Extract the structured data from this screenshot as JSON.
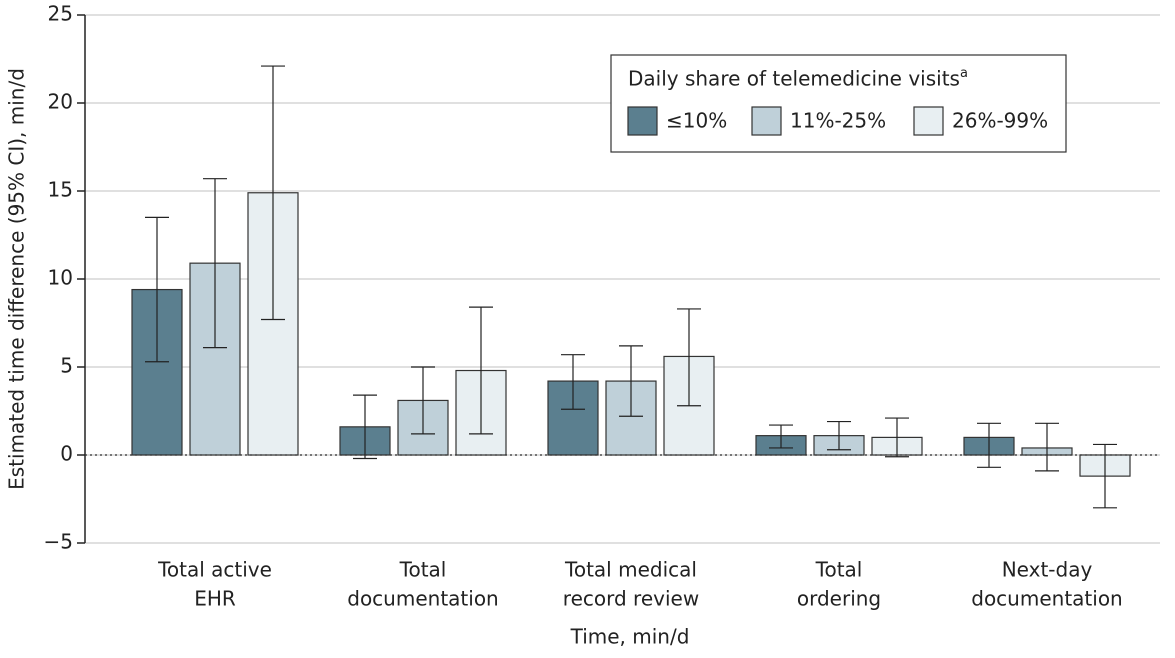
{
  "chart_data": {
    "type": "bar",
    "x_label": "Time, min/d",
    "y_label": "Estimated time difference (95% CI), min/d",
    "categories": [
      [
        "Total active",
        "EHR"
      ],
      [
        "Total",
        "documentation"
      ],
      [
        "Total medical",
        "record review"
      ],
      [
        "Total",
        "ordering"
      ],
      [
        "Next-day",
        "documentation"
      ]
    ],
    "legend_title": "Daily share of telemedicine visits",
    "legend_title_note": "a",
    "series": [
      {
        "name": "≤10%",
        "color": "#5b7f8f",
        "values": [
          9.4,
          1.6,
          4.2,
          1.1,
          1.0
        ],
        "ci_low": [
          5.3,
          -0.2,
          2.6,
          0.4,
          -0.7
        ],
        "ci_high": [
          13.5,
          3.4,
          5.7,
          1.7,
          1.8
        ]
      },
      {
        "name": "11%-25%",
        "color": "#bfd0d9",
        "values": [
          10.9,
          3.1,
          4.2,
          1.1,
          0.4
        ],
        "ci_low": [
          6.1,
          1.2,
          2.2,
          0.3,
          -0.9
        ],
        "ci_high": [
          15.7,
          5.0,
          6.2,
          1.9,
          1.8
        ]
      },
      {
        "name": "26%-99%",
        "color": "#e8eff2",
        "values": [
          14.9,
          4.8,
          5.6,
          1.0,
          -1.2
        ],
        "ci_low": [
          7.7,
          1.2,
          2.8,
          -0.1,
          -3.0
        ],
        "ci_high": [
          22.1,
          8.4,
          8.3,
          2.1,
          0.6
        ]
      }
    ],
    "ylim": [
      -5,
      25
    ],
    "yticks": [
      {
        "value": -5,
        "label": "−5"
      },
      0,
      5,
      10,
      15,
      20,
      25
    ],
    "grid": true
  }
}
